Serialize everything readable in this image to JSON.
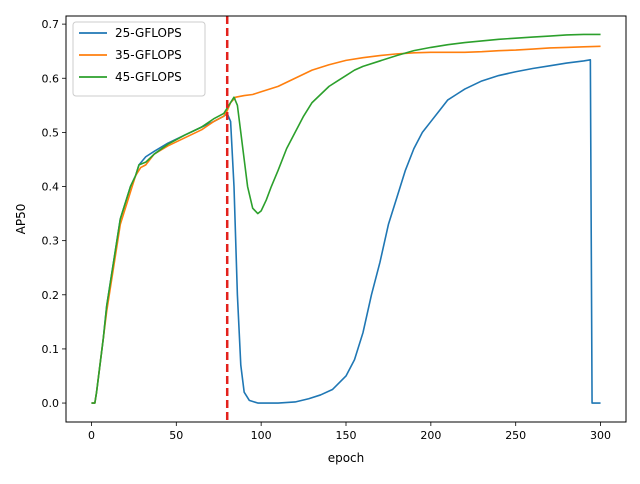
{
  "chart_data": {
    "type": "line",
    "title": "",
    "xlabel": "epoch",
    "ylabel": "AP50",
    "xlim": [
      -15,
      315
    ],
    "ylim": [
      -0.035,
      0.715
    ],
    "xticks": [
      0,
      50,
      100,
      150,
      200,
      250,
      300
    ],
    "yticks": [
      0.0,
      0.1,
      0.2,
      0.3,
      0.4,
      0.5,
      0.6,
      0.7
    ],
    "xtick_labels": [
      "0",
      "50",
      "100",
      "150",
      "200",
      "250",
      "300"
    ],
    "ytick_labels": [
      "0.0",
      "0.1",
      "0.2",
      "0.3",
      "0.4",
      "0.5",
      "0.6",
      "0.7"
    ],
    "grid": false,
    "legend_position": "top-left",
    "vline": {
      "x": 80,
      "color": "#e3211c",
      "style": "dashed"
    },
    "series": [
      {
        "name": "25-GFLOPS",
        "color": "#1f77b4",
        "points": [
          [
            0,
            0.0
          ],
          [
            2,
            0.0
          ],
          [
            3,
            0.02
          ],
          [
            5,
            0.07
          ],
          [
            7,
            0.12
          ],
          [
            9,
            0.18
          ],
          [
            11,
            0.22
          ],
          [
            13,
            0.26
          ],
          [
            15,
            0.3
          ],
          [
            17,
            0.34
          ],
          [
            20,
            0.37
          ],
          [
            23,
            0.4
          ],
          [
            26,
            0.42
          ],
          [
            28,
            0.44
          ],
          [
            32,
            0.455
          ],
          [
            37,
            0.465
          ],
          [
            45,
            0.48
          ],
          [
            55,
            0.495
          ],
          [
            65,
            0.51
          ],
          [
            72,
            0.52
          ],
          [
            78,
            0.53
          ],
          [
            80,
            0.535
          ],
          [
            82,
            0.52
          ],
          [
            84,
            0.4
          ],
          [
            86,
            0.2
          ],
          [
            88,
            0.07
          ],
          [
            90,
            0.02
          ],
          [
            93,
            0.005
          ],
          [
            98,
            0.0
          ],
          [
            110,
            0.0
          ],
          [
            120,
            0.002
          ],
          [
            128,
            0.008
          ],
          [
            135,
            0.015
          ],
          [
            142,
            0.025
          ],
          [
            150,
            0.05
          ],
          [
            155,
            0.08
          ],
          [
            160,
            0.13
          ],
          [
            165,
            0.2
          ],
          [
            170,
            0.26
          ],
          [
            175,
            0.33
          ],
          [
            180,
            0.38
          ],
          [
            185,
            0.43
          ],
          [
            190,
            0.47
          ],
          [
            195,
            0.5
          ],
          [
            200,
            0.52
          ],
          [
            205,
            0.54
          ],
          [
            210,
            0.56
          ],
          [
            215,
            0.57
          ],
          [
            220,
            0.58
          ],
          [
            230,
            0.595
          ],
          [
            240,
            0.605
          ],
          [
            250,
            0.612
          ],
          [
            260,
            0.618
          ],
          [
            270,
            0.623
          ],
          [
            280,
            0.628
          ],
          [
            290,
            0.632
          ],
          [
            294,
            0.634
          ],
          [
            295,
            0.0
          ],
          [
            300,
            0.0
          ]
        ]
      },
      {
        "name": "35-GFLOPS",
        "color": "#ff7f0e",
        "points": [
          [
            0,
            0.0
          ],
          [
            2,
            0.0
          ],
          [
            3,
            0.02
          ],
          [
            5,
            0.07
          ],
          [
            7,
            0.12
          ],
          [
            9,
            0.17
          ],
          [
            11,
            0.21
          ],
          [
            13,
            0.25
          ],
          [
            15,
            0.29
          ],
          [
            17,
            0.33
          ],
          [
            20,
            0.36
          ],
          [
            23,
            0.39
          ],
          [
            26,
            0.42
          ],
          [
            29,
            0.435
          ],
          [
            32,
            0.44
          ],
          [
            37,
            0.46
          ],
          [
            45,
            0.475
          ],
          [
            55,
            0.49
          ],
          [
            65,
            0.505
          ],
          [
            72,
            0.52
          ],
          [
            78,
            0.53
          ],
          [
            80,
            0.54
          ],
          [
            82,
            0.555
          ],
          [
            85,
            0.565
          ],
          [
            90,
            0.568
          ],
          [
            95,
            0.57
          ],
          [
            100,
            0.575
          ],
          [
            110,
            0.585
          ],
          [
            120,
            0.6
          ],
          [
            130,
            0.615
          ],
          [
            140,
            0.625
          ],
          [
            150,
            0.633
          ],
          [
            160,
            0.638
          ],
          [
            170,
            0.642
          ],
          [
            180,
            0.645
          ],
          [
            190,
            0.647
          ],
          [
            200,
            0.648
          ],
          [
            210,
            0.648
          ],
          [
            220,
            0.648
          ],
          [
            230,
            0.649
          ],
          [
            240,
            0.651
          ],
          [
            250,
            0.652
          ],
          [
            260,
            0.654
          ],
          [
            270,
            0.656
          ],
          [
            280,
            0.657
          ],
          [
            290,
            0.658
          ],
          [
            300,
            0.659
          ]
        ]
      },
      {
        "name": "45-GFLOPS",
        "color": "#2ca02c",
        "points": [
          [
            0,
            0.0
          ],
          [
            2,
            0.0
          ],
          [
            3,
            0.02
          ],
          [
            5,
            0.07
          ],
          [
            7,
            0.12
          ],
          [
            9,
            0.18
          ],
          [
            11,
            0.22
          ],
          [
            13,
            0.26
          ],
          [
            15,
            0.3
          ],
          [
            17,
            0.34
          ],
          [
            20,
            0.37
          ],
          [
            23,
            0.4
          ],
          [
            26,
            0.42
          ],
          [
            28,
            0.44
          ],
          [
            32,
            0.445
          ],
          [
            37,
            0.46
          ],
          [
            45,
            0.478
          ],
          [
            55,
            0.495
          ],
          [
            65,
            0.51
          ],
          [
            72,
            0.525
          ],
          [
            78,
            0.535
          ],
          [
            80,
            0.545
          ],
          [
            82,
            0.555
          ],
          [
            84,
            0.565
          ],
          [
            86,
            0.55
          ],
          [
            88,
            0.5
          ],
          [
            90,
            0.45
          ],
          [
            92,
            0.4
          ],
          [
            95,
            0.36
          ],
          [
            98,
            0.35
          ],
          [
            100,
            0.355
          ],
          [
            103,
            0.375
          ],
          [
            106,
            0.4
          ],
          [
            110,
            0.43
          ],
          [
            115,
            0.47
          ],
          [
            120,
            0.5
          ],
          [
            125,
            0.53
          ],
          [
            130,
            0.555
          ],
          [
            135,
            0.57
          ],
          [
            140,
            0.585
          ],
          [
            145,
            0.595
          ],
          [
            150,
            0.605
          ],
          [
            155,
            0.615
          ],
          [
            160,
            0.622
          ],
          [
            170,
            0.632
          ],
          [
            180,
            0.642
          ],
          [
            190,
            0.651
          ],
          [
            200,
            0.657
          ],
          [
            210,
            0.662
          ],
          [
            220,
            0.666
          ],
          [
            230,
            0.669
          ],
          [
            240,
            0.672
          ],
          [
            250,
            0.674
          ],
          [
            260,
            0.676
          ],
          [
            270,
            0.678
          ],
          [
            280,
            0.68
          ],
          [
            290,
            0.681
          ],
          [
            300,
            0.681
          ]
        ]
      }
    ]
  }
}
